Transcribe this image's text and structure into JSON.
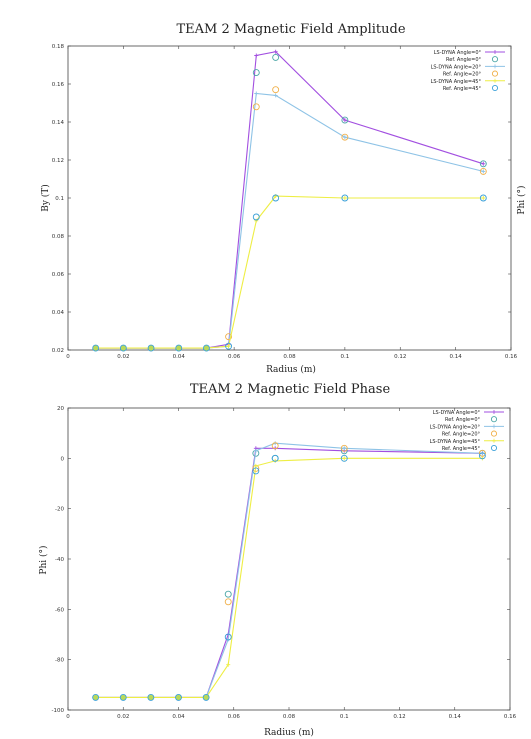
{
  "colors": {
    "lsdyna0": "#a24fe0",
    "ref0": "#4aa6a6",
    "lsdyna20": "#8ec3e6",
    "ref20": "#f0b04a",
    "lsdyna45": "#eeee44",
    "ref45": "#3aa0d8",
    "filled_marker": "#b9d95a"
  },
  "side_label": "Phi (°)",
  "chart_data": [
    {
      "type": "line",
      "title": "TEAM 2  Magnetic Field Amplitude",
      "xlabel": "Radius (m)",
      "ylabel": "By (T)",
      "xlim": [
        0,
        0.16
      ],
      "ylim": [
        0.02,
        0.18
      ],
      "xticks": [
        0,
        0.02,
        0.04,
        0.06,
        0.08,
        0.1,
        0.12,
        0.14,
        0.16
      ],
      "xtick_labels": [
        "0",
        "0.02",
        "0.04",
        "0.06",
        "0.08",
        "0.1",
        "0.12",
        "0.14",
        "0.16"
      ],
      "yticks": [
        0.02,
        0.04,
        0.06,
        0.08,
        0.1,
        0.12,
        0.14,
        0.16,
        0.18
      ],
      "ytick_labels": [
        "0.02",
        "0.04",
        "0.06",
        "0.08",
        "0.1",
        "0.12",
        "0.14",
        "0.16",
        "0.18"
      ],
      "legend_position": "top-right",
      "series": [
        {
          "name": "LS-DYNA Angle=0°",
          "style": "line",
          "colorKey": "lsdyna0",
          "x": [
            0.01,
            0.02,
            0.03,
            0.04,
            0.05,
            0.058,
            0.068,
            0.075,
            0.1,
            0.15
          ],
          "y": [
            0.021,
            0.021,
            0.021,
            0.021,
            0.021,
            0.023,
            0.175,
            0.177,
            0.141,
            0.118
          ]
        },
        {
          "name": "Ref. Angle=0°",
          "style": "ring",
          "colorKey": "ref0",
          "x": [
            0.068,
            0.075,
            0.1,
            0.15
          ],
          "y": [
            0.166,
            0.174,
            0.141,
            0.118
          ]
        },
        {
          "name": "LS-DYNA Angle=20°",
          "style": "line",
          "colorKey": "lsdyna20",
          "x": [
            0.01,
            0.02,
            0.03,
            0.04,
            0.05,
            0.058,
            0.068,
            0.075,
            0.1,
            0.15
          ],
          "y": [
            0.021,
            0.021,
            0.021,
            0.021,
            0.021,
            0.022,
            0.155,
            0.154,
            0.132,
            0.114
          ]
        },
        {
          "name": "Ref. Angle=20°",
          "style": "ring",
          "colorKey": "ref20",
          "x": [
            0.058,
            0.068,
            0.075,
            0.1,
            0.15
          ],
          "y": [
            0.027,
            0.148,
            0.157,
            0.132,
            0.114
          ]
        },
        {
          "name": "LS-DYNA Angle=45°",
          "style": "line",
          "colorKey": "lsdyna45",
          "x": [
            0.01,
            0.02,
            0.03,
            0.04,
            0.05,
            0.058,
            0.068,
            0.075,
            0.1,
            0.15
          ],
          "y": [
            0.021,
            0.021,
            0.021,
            0.021,
            0.021,
            0.022,
            0.088,
            0.101,
            0.1,
            0.1
          ]
        },
        {
          "name": "Ref. Angle=45°",
          "style": "ring",
          "colorKey": "ref45",
          "x": [
            0.01,
            0.02,
            0.03,
            0.04,
            0.05,
            0.058,
            0.068,
            0.075,
            0.1,
            0.15
          ],
          "y": [
            0.021,
            0.021,
            0.021,
            0.021,
            0.021,
            0.022,
            0.09,
            0.1,
            0.1,
            0.1
          ]
        }
      ]
    },
    {
      "type": "line",
      "title": "TEAM 2  Magnetic Field Phase",
      "xlabel": "Radius (m)",
      "ylabel": "Phi (°)",
      "xlim": [
        0,
        0.16
      ],
      "ylim": [
        -100,
        20
      ],
      "xticks": [
        0,
        0.02,
        0.04,
        0.06,
        0.08,
        0.1,
        0.12,
        0.14,
        0.16
      ],
      "xtick_labels": [
        "0",
        "0.02",
        "0.04",
        "0.06",
        "0.08",
        "0.1",
        "0.12",
        "0.14",
        "0.16"
      ],
      "yticks": [
        -100,
        -80,
        -60,
        -40,
        -20,
        0,
        20
      ],
      "ytick_labels": [
        "-100",
        "-80",
        "-60",
        "-40",
        "-20",
        "0",
        "20"
      ],
      "legend_position": "top-right",
      "series": [
        {
          "name": "LS-DYNA Angle=0°",
          "style": "line",
          "colorKey": "lsdyna0",
          "x": [
            0.01,
            0.02,
            0.03,
            0.04,
            0.05,
            0.058,
            0.068,
            0.075,
            0.1,
            0.15
          ],
          "y": [
            -95,
            -95,
            -95,
            -95,
            -95,
            -70,
            4,
            4,
            3,
            2
          ]
        },
        {
          "name": "Ref. Angle=0°",
          "style": "ring",
          "colorKey": "ref0",
          "x": [
            0.058,
            0.068,
            0.075,
            0.1,
            0.15
          ],
          "y": [
            -54,
            2,
            0,
            3,
            2
          ]
        },
        {
          "name": "LS-DYNA Angle=20°",
          "style": "line",
          "colorKey": "lsdyna20",
          "x": [
            0.01,
            0.02,
            0.03,
            0.04,
            0.05,
            0.058,
            0.068,
            0.075,
            0.1,
            0.15
          ],
          "y": [
            -95,
            -95,
            -95,
            -95,
            -95,
            -72,
            3,
            6,
            4,
            2
          ]
        },
        {
          "name": "Ref. Angle=20°",
          "style": "ring",
          "colorKey": "ref20",
          "x": [
            0.058,
            0.068,
            0.075,
            0.1,
            0.15
          ],
          "y": [
            -57,
            -4,
            5,
            4,
            2
          ]
        },
        {
          "name": "LS-DYNA Angle=45°",
          "style": "line",
          "colorKey": "lsdyna45",
          "x": [
            0.01,
            0.02,
            0.03,
            0.04,
            0.05,
            0.058,
            0.068,
            0.075,
            0.1,
            0.15
          ],
          "y": [
            -95,
            -95,
            -95,
            -95,
            -95,
            -82,
            -3,
            -1,
            0,
            0
          ]
        },
        {
          "name": "Ref. Angle=45°",
          "style": "ring",
          "colorKey": "ref45",
          "x": [
            0.01,
            0.02,
            0.03,
            0.04,
            0.05,
            0.058,
            0.068,
            0.075,
            0.1,
            0.15
          ],
          "y": [
            -95,
            -95,
            -95,
            -95,
            -95,
            -71,
            -5,
            0,
            0,
            1
          ]
        }
      ]
    }
  ]
}
